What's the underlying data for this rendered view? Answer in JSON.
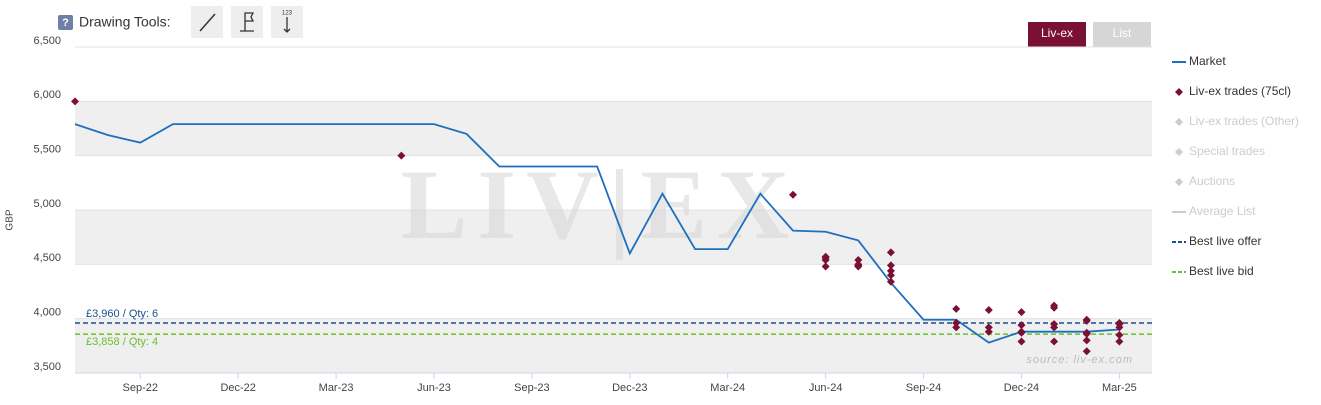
{
  "toolbar": {
    "help": "?",
    "label": "Drawing Tools:",
    "icon_text": "123"
  },
  "buttons": [
    {
      "label": "Liv-ex",
      "active": true
    },
    {
      "label": "List",
      "active": false
    }
  ],
  "chart_data": {
    "type": "line",
    "y_label": "GBP",
    "watermark": "LIV|EX",
    "source": "source: liv-ex.com",
    "xlim": [
      "2022-07",
      "2025-04"
    ],
    "xticks": [
      {
        "value": "2022-09",
        "label": "Sep-22"
      },
      {
        "value": "2022-12",
        "label": "Dec-22"
      },
      {
        "value": "2023-03",
        "label": "Mar-23"
      },
      {
        "value": "2023-06",
        "label": "Jun-23"
      },
      {
        "value": "2023-09",
        "label": "Sep-23"
      },
      {
        "value": "2023-12",
        "label": "Dec-23"
      },
      {
        "value": "2024-03",
        "label": "Mar-24"
      },
      {
        "value": "2024-06",
        "label": "Jun-24"
      },
      {
        "value": "2024-09",
        "label": "Sep-24"
      },
      {
        "value": "2024-12",
        "label": "Dec-24"
      },
      {
        "value": "2025-03",
        "label": "Mar-25"
      }
    ],
    "ylim": [
      3500,
      6500
    ],
    "yticks": [
      3500,
      4000,
      4500,
      5000,
      5500,
      6000,
      6500
    ],
    "ytick_labels": [
      "3,500",
      "4,000",
      "4,500",
      "5,000",
      "5,500",
      "6,000",
      "6,500"
    ],
    "alternate_bands": true,
    "series": [
      {
        "name": "Market",
        "mark": "line",
        "color": "#1f6fbf",
        "visible": true,
        "x": [
          "2022-07",
          "2022-08",
          "2022-09",
          "2022-10",
          "2022-11",
          "2022-12",
          "2023-01",
          "2023-02",
          "2023-03",
          "2023-04",
          "2023-05",
          "2023-06",
          "2023-07",
          "2023-08",
          "2023-09",
          "2023-10",
          "2023-11",
          "2023-12",
          "2024-01",
          "2024-02",
          "2024-03",
          "2024-04",
          "2024-05",
          "2024-06",
          "2024-07",
          "2024-08",
          "2024-09",
          "2024-10",
          "2024-11",
          "2024-12",
          "2025-01",
          "2025-02",
          "2025-03"
        ],
        "values": [
          5790,
          5690,
          5620,
          5790,
          5790,
          5790,
          5790,
          5790,
          5790,
          5790,
          5790,
          5790,
          5700,
          5400,
          5400,
          5400,
          5400,
          4600,
          5150,
          4640,
          4640,
          5150,
          4810,
          4800,
          4720,
          4330,
          3990,
          3990,
          3780,
          3880,
          3880,
          3880,
          3900
        ]
      },
      {
        "name": "Liv-ex trades (75cl)",
        "mark": "diamond",
        "color": "#7a1034",
        "visible": true,
        "x": [
          "2022-07",
          "2023-05",
          "2024-05",
          "2024-06",
          "2024-06",
          "2024-06",
          "2024-06",
          "2024-07",
          "2024-07",
          "2024-07",
          "2024-07",
          "2024-08",
          "2024-08",
          "2024-08",
          "2024-08",
          "2024-08",
          "2024-10",
          "2024-10",
          "2024-10",
          "2024-11",
          "2024-11",
          "2024-11",
          "2024-12",
          "2024-12",
          "2024-12",
          "2024-12",
          "2024-12",
          "2025-01",
          "2025-01",
          "2025-01",
          "2025-01",
          "2025-01",
          "2025-02",
          "2025-02",
          "2025-02",
          "2025-02",
          "2025-02",
          "2025-02",
          "2025-03",
          "2025-03",
          "2025-03",
          "2025-03",
          "2025-03"
        ],
        "values": [
          6000,
          5500,
          5140,
          4540,
          4570,
          4560,
          4480,
          4480,
          4490,
          4540,
          4500,
          4490,
          4440,
          4400,
          4610,
          4340,
          4090,
          3960,
          3920,
          3880,
          3920,
          4080,
          3940,
          3880,
          3790,
          4060,
          3870,
          4120,
          3920,
          4100,
          3790,
          3950,
          3980,
          3990,
          3860,
          3700,
          3800,
          3870,
          3960,
          3850,
          3790,
          3950,
          3920
        ]
      },
      {
        "name": "Liv-ex trades (Other)",
        "mark": "diamond",
        "color": "#cccccc",
        "visible": false
      },
      {
        "name": "Special trades",
        "mark": "diamond",
        "color": "#cccccc",
        "visible": false
      },
      {
        "name": "Auctions",
        "mark": "diamond",
        "color": "#cccccc",
        "visible": false
      },
      {
        "name": "Average List",
        "mark": "line",
        "color": "#cccccc",
        "visible": false
      }
    ],
    "reference_lines": [
      {
        "name": "Best live offer",
        "value": 3960,
        "label": "£3,960 / Qty: 6",
        "color": "#1a4f8f"
      },
      {
        "name": "Best live bid",
        "value": 3858,
        "label": "£3,858 / Qty: 4",
        "color": "#6cbf2e"
      }
    ]
  }
}
